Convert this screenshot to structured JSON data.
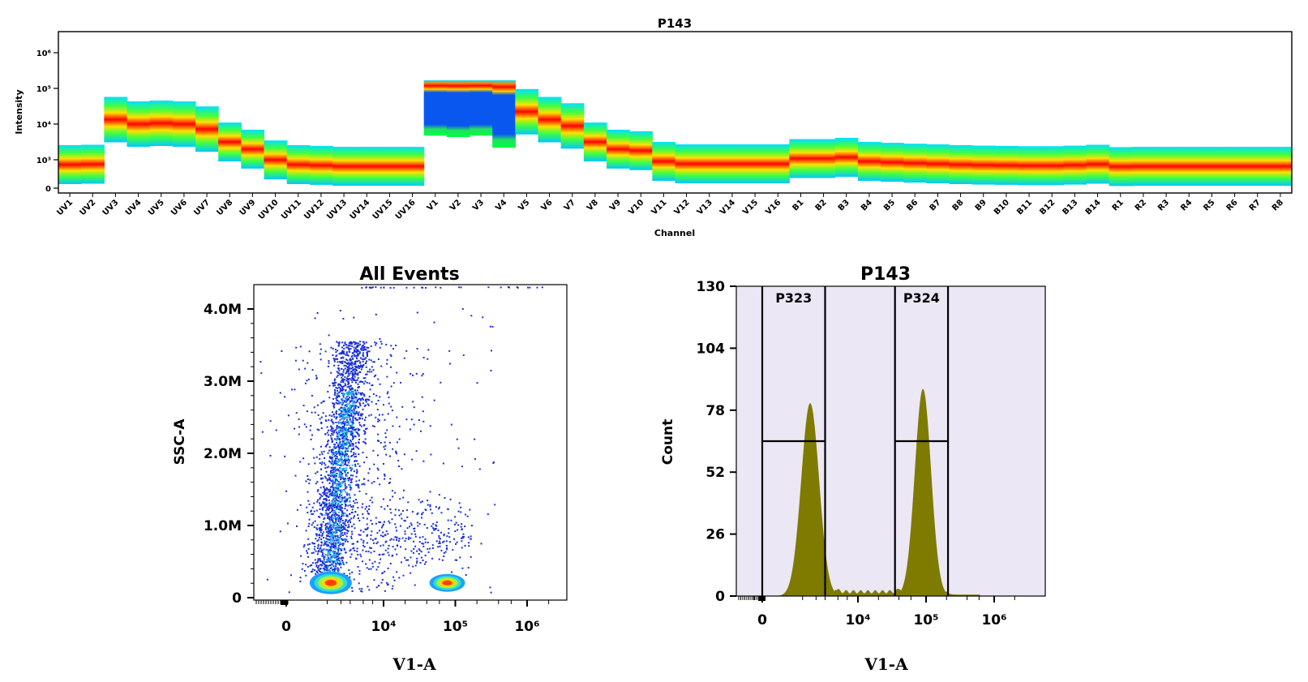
{
  "colors": {
    "axis": "#000000",
    "scatter_dot": "#1a2fd6",
    "histogram_fill": "#7f7a00",
    "histogram_bg": "#ebe7f4",
    "spectrum_low": "#00c8ff",
    "spectrum_mid": "#ffe000",
    "spectrum_high": "#ff0000",
    "spectrum_blue": "#0a57f0"
  },
  "chart_data": [
    {
      "type": "heatmap",
      "title": "P143",
      "xlabel": "Channel",
      "ylabel": "Intensity",
      "scale": "log",
      "y_tick_labels": [
        {
          "label": "0",
          "value": 0
        },
        {
          "label": "10³",
          "value": 1000
        },
        {
          "label": "10⁴",
          "value": 10000
        },
        {
          "label": "10⁵",
          "value": 100000
        },
        {
          "label": "10⁶",
          "value": 1000000
        }
      ],
      "categories": [
        "UV1",
        "UV2",
        "UV3",
        "UV4",
        "UV5",
        "UV6",
        "UV7",
        "UV8",
        "UV9",
        "UV10",
        "UV11",
        "UV12",
        "UV13",
        "UV14",
        "UV15",
        "UV16",
        "V1",
        "V2",
        "V3",
        "V4",
        "V5",
        "V6",
        "V7",
        "V8",
        "V9",
        "V10",
        "V11",
        "V12",
        "V13",
        "V14",
        "V15",
        "V16",
        "B1",
        "B2",
        "B3",
        "B4",
        "B5",
        "B6",
        "B7",
        "B8",
        "B9",
        "B10",
        "B11",
        "B12",
        "B13",
        "B14",
        "R1",
        "R2",
        "R3",
        "R4",
        "R5",
        "R6",
        "R7",
        "R8"
      ],
      "median_intensity": [
        450,
        500,
        12000,
        9000,
        9500,
        9000,
        6500,
        3500,
        2200,
        1100,
        450,
        380,
        300,
        300,
        300,
        300,
        110000,
        100000,
        110000,
        50000,
        20000,
        12000,
        8000,
        3500,
        2200,
        2000,
        1000,
        550,
        550,
        550,
        550,
        550,
        1200,
        1200,
        1300,
        1000,
        800,
        650,
        550,
        450,
        400,
        380,
        350,
        350,
        400,
        500,
        280,
        300,
        300,
        300,
        300,
        300,
        300,
        300
      ],
      "legend": "none",
      "grid": false
    },
    {
      "type": "scatter",
      "title": "All Events",
      "xlabel": "V1-A",
      "ylabel": "SSC-A",
      "x_scale": "biexponential",
      "x_tick_labels": [
        {
          "label": "0",
          "value": 0
        },
        {
          "label": "10⁴",
          "value": 10000
        },
        {
          "label": "10⁵",
          "value": 100000
        },
        {
          "label": "10⁶",
          "value": 1000000
        }
      ],
      "y_tick_labels": [
        {
          "label": "0",
          "value": 0
        },
        {
          "label": "1.0M",
          "value": 1000000
        },
        {
          "label": "2.0M",
          "value": 2000000
        },
        {
          "label": "3.0M",
          "value": 3000000
        },
        {
          "label": "4.0M",
          "value": 4000000
        }
      ],
      "ylim": [
        0,
        4200000
      ],
      "populations": [
        {
          "x_center": 500,
          "y_center": 250000
        },
        {
          "x_center": 3000,
          "y_center": 1800000
        },
        {
          "x_center": 20000,
          "y_center": 700000
        },
        {
          "x_center": 100000,
          "y_center": 250000
        }
      ],
      "legend": "none",
      "grid": false
    },
    {
      "type": "area",
      "title": "P143",
      "xlabel": "V1-A",
      "ylabel": "Count",
      "x_scale": "biexponential",
      "x_tick_labels": [
        {
          "label": "0",
          "value": 0
        },
        {
          "label": "10⁴",
          "value": 10000
        },
        {
          "label": "10⁵",
          "value": 100000
        },
        {
          "label": "10⁶",
          "value": 1000000
        }
      ],
      "y_tick_labels": [
        {
          "label": "0",
          "value": 0
        },
        {
          "label": "26",
          "value": 26
        },
        {
          "label": "52",
          "value": 52
        },
        {
          "label": "78",
          "value": 78
        },
        {
          "label": "104",
          "value": 104
        },
        {
          "label": "130",
          "value": 130
        }
      ],
      "ylim": [
        0,
        130
      ],
      "peaks": [
        {
          "x": 1500,
          "count": 81
        },
        {
          "x": 90000,
          "count": 87
        }
      ],
      "gates": [
        {
          "name": "P323",
          "x_min": 0,
          "x_max": 3000
        },
        {
          "name": "P324",
          "x_min": 35000,
          "x_max": 210000
        }
      ],
      "legend": "none",
      "grid": false
    }
  ]
}
